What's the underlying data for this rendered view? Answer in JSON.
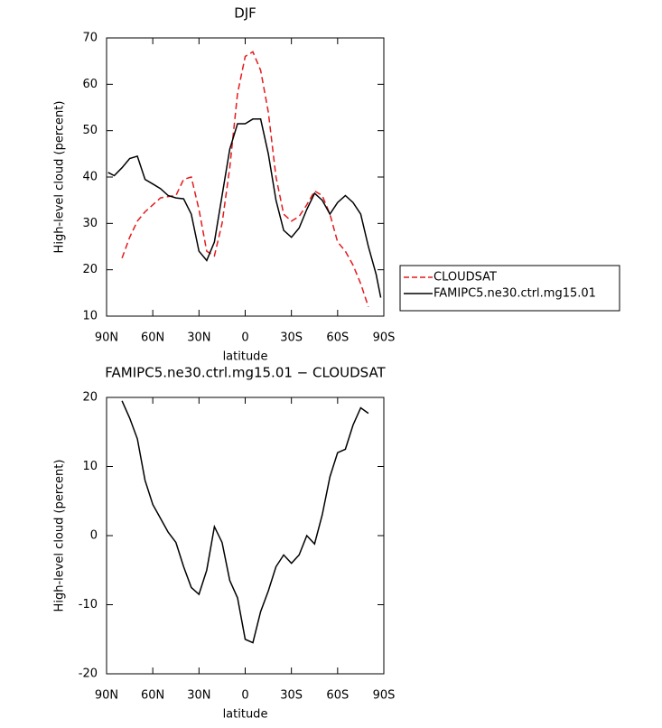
{
  "chart_data": [
    {
      "type": "line",
      "title": "DJF",
      "x_label": "latitude",
      "y_label": "High-level cloud (percent)",
      "x": [
        89,
        85,
        80,
        75,
        70,
        65,
        60,
        55,
        50,
        45,
        40,
        35,
        30,
        25,
        20,
        15,
        10,
        5,
        0,
        -5,
        -10,
        -15,
        -20,
        -25,
        -30,
        -35,
        -40,
        -45,
        -50,
        -55,
        -60,
        -65,
        -70,
        -75,
        -80,
        -85,
        -88
      ],
      "series": [
        {
          "name": "CLOUDSAT",
          "color": "#e41a1c",
          "style": "dashed",
          "values": [
            null,
            null,
            22.5,
            27,
            30.5,
            32.5,
            34,
            35.5,
            35.8,
            36,
            39.5,
            40,
            33,
            24,
            23,
            30,
            42,
            58,
            66,
            67,
            63,
            54,
            40,
            32,
            30.5,
            31.5,
            34,
            37,
            36,
            32,
            26,
            24,
            21,
            17,
            12,
            null,
            null
          ]
        },
        {
          "name": "FAMIPC5.ne30.ctrl.mg15.01",
          "color": "#000000",
          "style": "solid",
          "values": [
            41,
            40.3,
            42,
            44,
            44.5,
            39.5,
            38.5,
            37.5,
            36,
            35.5,
            35.3,
            32,
            24,
            22,
            26,
            36,
            46,
            51.5,
            51.5,
            52.5,
            52.5,
            45,
            35,
            28.5,
            27,
            29,
            33,
            36.5,
            35,
            32,
            34.5,
            36,
            34.5,
            32,
            25,
            19,
            14
          ]
        }
      ],
      "xlim": [
        90,
        -90
      ],
      "xticks": [
        {
          "value": 90,
          "label": "90N"
        },
        {
          "value": 60,
          "label": "60N"
        },
        {
          "value": 30,
          "label": "30N"
        },
        0,
        {
          "value": -30,
          "label": "30S"
        },
        {
          "value": -60,
          "label": "60S"
        },
        {
          "value": -90,
          "label": "90S"
        }
      ],
      "ylim": [
        10,
        70
      ],
      "yticks": [
        10,
        20,
        30,
        40,
        50,
        60,
        70
      ],
      "legend": "right"
    },
    {
      "type": "line",
      "title": "FAMIPC5.ne30.ctrl.mg15.01 − CLOUDSAT",
      "x_label": "latitude",
      "y_label": "High-level cloud (percent)",
      "x": [
        80,
        75,
        70,
        65,
        60,
        55,
        50,
        45,
        40,
        35,
        30,
        25,
        20,
        15,
        10,
        5,
        0,
        -5,
        -10,
        -15,
        -20,
        -25,
        -30,
        -35,
        -40,
        -45,
        -50,
        -55,
        -60,
        -65,
        -70,
        -75,
        -80
      ],
      "values": [
        19.5,
        17,
        14,
        8,
        4.5,
        2.5,
        0.5,
        -1,
        -4.5,
        -7.5,
        -8.5,
        -5,
        1.3,
        -1,
        -6.5,
        -9,
        -15,
        -15.5,
        -11,
        -8,
        -4.5,
        -2.8,
        -4,
        -2.8,
        0,
        -1.2,
        3,
        8.5,
        12,
        12.5,
        16,
        18.5,
        17.7
      ],
      "color": "#000000",
      "xlim": [
        90,
        -90
      ],
      "xticks": [
        {
          "value": 90,
          "label": "90N"
        },
        {
          "value": 60,
          "label": "60N"
        },
        {
          "value": 30,
          "label": "30N"
        },
        0,
        {
          "value": -30,
          "label": "30S"
        },
        {
          "value": -60,
          "label": "60S"
        },
        {
          "value": -90,
          "label": "90S"
        }
      ],
      "ylim": [
        -20,
        20
      ],
      "yticks": [
        -20,
        -10,
        0,
        10,
        20
      ]
    }
  ]
}
